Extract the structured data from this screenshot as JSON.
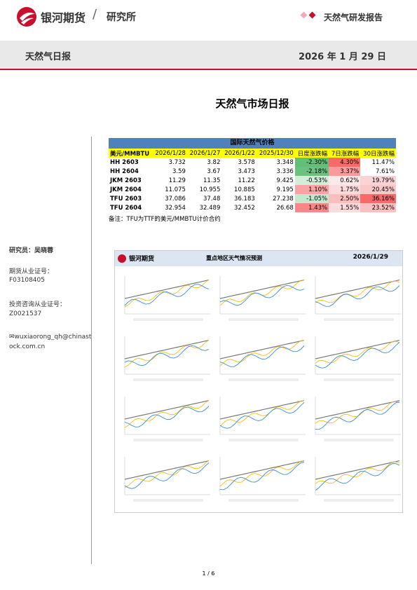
{
  "header": {
    "brand": "银河期货",
    "dept": "研究所",
    "report_type": "天然气研发报告"
  },
  "banner": {
    "title": "天然气日报",
    "date": "2026 年 1 月 29 日"
  },
  "title": "天然气市场日报",
  "sidebar": {
    "analyst": "研究员：吴晓蓉",
    "license_label": "期货从业证号：",
    "license": "F03108405",
    "consult_label": "投资咨询从业证号：",
    "consult": "Z0021537",
    "email": "wuxiaorong_qh@chinastock.com.cn"
  },
  "table": {
    "title": "国际天然气价格",
    "columns": [
      "美元/MMBTU",
      "2026/1/28",
      "2026/1/27",
      "2026/1/22",
      "2025/12/30",
      "日度涨跌幅",
      "7日涨跌幅",
      "30日涨跌幅"
    ],
    "rows": [
      [
        "HH 2603",
        "3.732",
        "3.82",
        "3.578",
        "3.348",
        "-2.30%",
        "4.30%",
        "11.47%"
      ],
      [
        "HH 2604",
        "3.59",
        "3.67",
        "3.473",
        "3.336",
        "-2.18%",
        "3.37%",
        "7.61%"
      ],
      [
        "JKM 2603",
        "11.29",
        "11.35",
        "11.22",
        "9.425",
        "-0.53%",
        "0.62%",
        "19.79%"
      ],
      [
        "JKM 2604",
        "11.075",
        "10.955",
        "10.885",
        "9.195",
        "1.10%",
        "1.75%",
        "20.45%"
      ],
      [
        "TFU 2603",
        "37.086",
        "37.48",
        "36.183",
        "27.238",
        "-1.05%",
        "2.50%",
        "36.16%"
      ],
      [
        "TFU 2604",
        "32.954",
        "32.489",
        "32.452",
        "26.68",
        "1.43%",
        "1.55%",
        "23.52%"
      ]
    ],
    "note": "备注：TFU为TTF的美元/MMBTU计价合约"
  },
  "figure": {
    "brand": "银河期货",
    "title": "重点地区天气情况预测",
    "date": "2026/1/29"
  },
  "footer": {
    "page": "1 / 6"
  }
}
